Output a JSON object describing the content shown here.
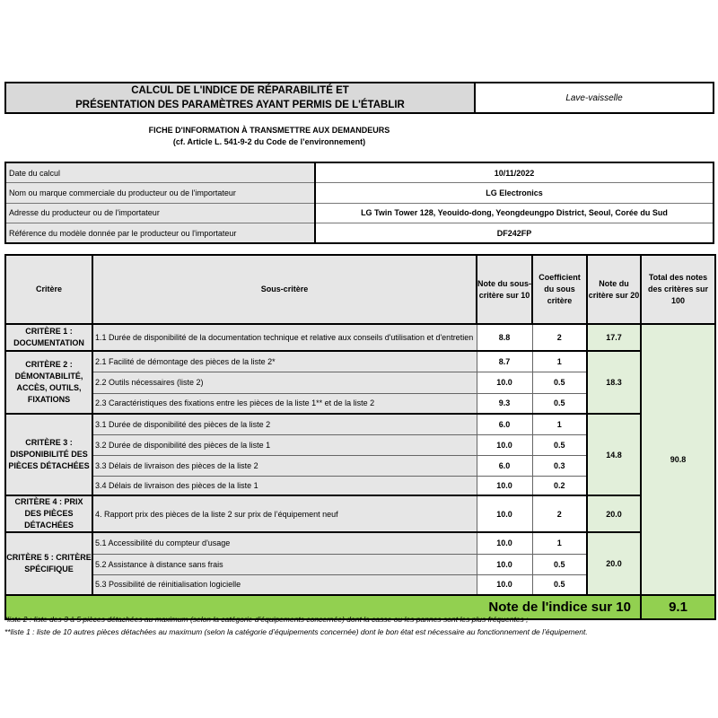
{
  "header": {
    "title_line1": "CALCUL DE L'INDICE DE RÉPARABILITÉ ET",
    "title_line2": "PRÉSENTATION DES PARAMÈTRES AYANT PERMIS DE L'ÉTABLIR",
    "category": "Lave-vaisselle"
  },
  "fiche": {
    "line1": "FICHE D'INFORMATION À TRANSMETTRE AUX DEMANDEURS",
    "line2": "(cf. Article L. 541-9-2 du Code de l’environnement)"
  },
  "info": [
    {
      "label": "Date du calcul",
      "value": "10/11/2022"
    },
    {
      "label": "Nom ou marque commerciale du producteur ou de l'importateur",
      "value": "LG Electronics"
    },
    {
      "label": "Adresse du producteur ou de l'importateur",
      "value": "LG Twin Tower 128, Yeouido-dong, Yeongdeungpo District, Seoul, Corée du Sud"
    },
    {
      "label": "Référence du modèle donnée par le producteur ou l'importateur",
      "value": "DF242FP"
    }
  ],
  "table": {
    "headers": [
      "Critère",
      "Sous-critère",
      "Note du sous-critère sur 10",
      "Coefficient du sous critère",
      "Note du critère sur 20",
      "Total des notes des critères sur 100"
    ],
    "criteria": [
      {
        "name": "CRITÈRE 1 : DOCUMENTATION",
        "score": "17.7",
        "subs": [
          {
            "label": "1.1 Durée de disponibilité de la documentation technique et relative aux conseils d'utilisation et d'entretien",
            "note": "8.8",
            "coef": "2"
          }
        ]
      },
      {
        "name": "CRITÈRE 2 : DÉMONTABILITÉ, ACCÈS, OUTILS, FIXATIONS",
        "score": "18.3",
        "subs": [
          {
            "label": "2.1 Facilité de démontage des pièces de la liste 2*",
            "note": "8.7",
            "coef": "1"
          },
          {
            "label": "2.2 Outils nécessaires (liste 2)",
            "note": "10.0",
            "coef": "0.5"
          },
          {
            "label": "2.3 Caractéristiques des fixations entre les pièces de la liste 1** et de la liste 2",
            "note": "9.3",
            "coef": "0.5"
          }
        ]
      },
      {
        "name": "CRITÈRE 3 : DISPONIBILITÉ DES PIÈCES DÉTACHÉES",
        "score": "14.8",
        "subs": [
          {
            "label": "3.1 Durée de disponibilité des pièces de la liste 2",
            "note": "6.0",
            "coef": "1"
          },
          {
            "label": "3.2 Durée de disponibilité des pièces de la liste 1",
            "note": "10.0",
            "coef": "0.5"
          },
          {
            "label": "3.3 Délais de livraison des pièces de la liste 2",
            "note": "6.0",
            "coef": "0.3"
          },
          {
            "label": "3.4 Délais de livraison des pièces de la liste 1",
            "note": "10.0",
            "coef": "0.2"
          }
        ]
      },
      {
        "name": "CRITÈRE 4 : PRIX DES PIÈCES DÉTACHÉES",
        "score": "20.0",
        "subs": [
          {
            "label": "4. Rapport prix des pièces de la liste 2 sur prix de l’équipement neuf",
            "note": "10.0",
            "coef": "2"
          }
        ]
      },
      {
        "name": "CRITÈRE 5 : CRITÈRE SPÉCIFIQUE",
        "score": "20.0",
        "subs": [
          {
            "label": "5.1 Accessibilité du compteur d'usage",
            "note": "10.0",
            "coef": "1"
          },
          {
            "label": "5.2 Assistance à distance sans frais",
            "note": "10.0",
            "coef": "0.5"
          },
          {
            "label": "5.3 Possibilité de réinitialisation logicielle",
            "note": "10.0",
            "coef": "0.5"
          }
        ]
      }
    ],
    "total": "90.8",
    "final_label": "Note de l'indice sur 10",
    "final_value": "9.1"
  },
  "footnotes": [
    "*liste 2 : liste des 3 à 5 pièces détachées au maximum (selon la catégorie d’équipements concernée) dont la casse ou les pannes sont les plus fréquentes ;",
    "**liste 1 : liste de 10 autres pièces détachées au maximum (selon la catégorie d’équipements concernée) dont le bon état est nécessaire au fonctionnement de l’équipement."
  ],
  "colors": {
    "final_bar": "#92d050",
    "score_cell": "#e2efda",
    "label_cell": "#e6e6e6"
  }
}
